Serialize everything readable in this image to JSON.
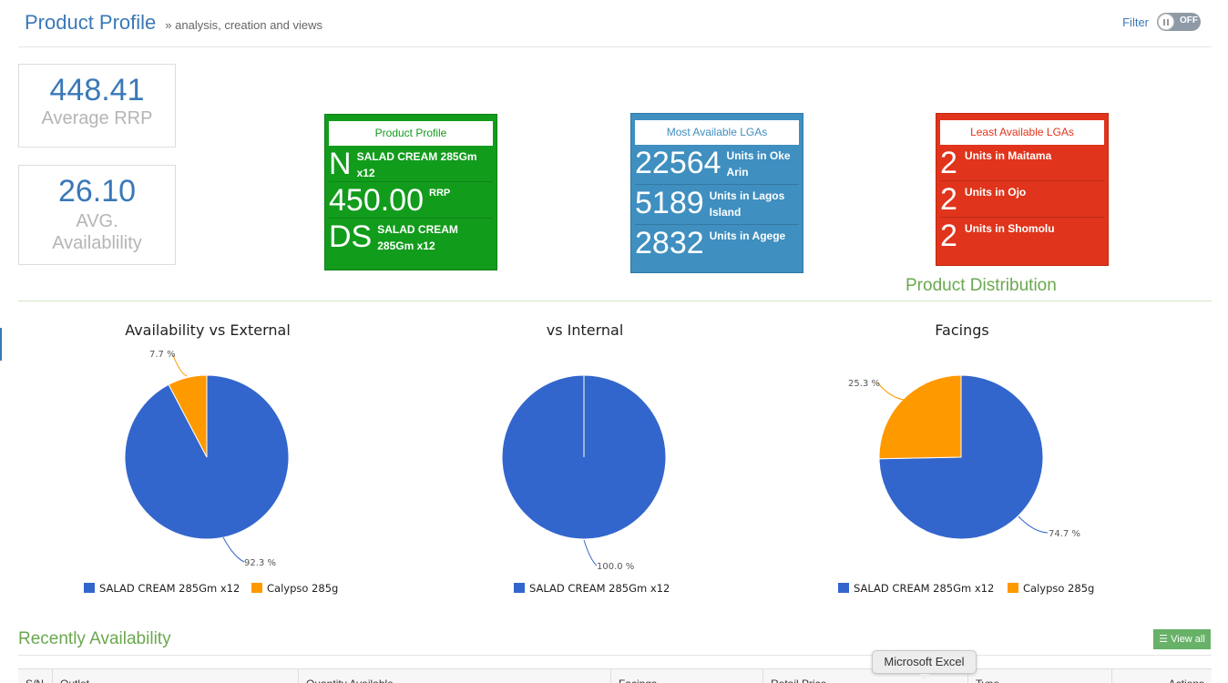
{
  "header": {
    "title": "Product Profile",
    "subtitle": "» analysis, creation and views",
    "filter_label": "Filter",
    "toggle_state": "OFF"
  },
  "stats": [
    {
      "value": "448.41",
      "label": "Average RRP"
    },
    {
      "value": "26.10",
      "label_line1": "AVG.",
      "label_line2": "Availablility"
    }
  ],
  "product_profile": {
    "title": "Product Profile",
    "rows": [
      {
        "big": "N",
        "small": "SALAD CREAM 285Gm x12"
      },
      {
        "big": "450.00",
        "small": "RRP"
      },
      {
        "big": "DS",
        "small": "SALAD CREAM 285Gm x12"
      }
    ]
  },
  "most_available": {
    "title": "Most Available LGAs",
    "rows": [
      {
        "big": "22564",
        "small": "Units in Oke Arin"
      },
      {
        "big": "5189",
        "small": "Units in Lagos Island"
      },
      {
        "big": "2832",
        "small": "Units in Agege"
      }
    ]
  },
  "least_available": {
    "title": "Least Available LGAs",
    "rows": [
      {
        "big": "2",
        "small": "Units in Maitama"
      },
      {
        "big": "2",
        "small": "Units in Ojo"
      },
      {
        "big": "2",
        "small": "Units in Shomolu"
      }
    ]
  },
  "distribution_title": "Product Distribution",
  "colors": {
    "blue": "#3366cc",
    "orange": "#ff9900"
  },
  "chart_data": [
    {
      "type": "pie",
      "title": "Availability vs External",
      "slices": [
        {
          "name": "SALAD CREAM 285Gm x12",
          "value": 92.3,
          "label": "92.3 %",
          "color": "#3366cc"
        },
        {
          "name": "Calypso 285g",
          "value": 7.7,
          "label": "7.7 %",
          "color": "#ff9900"
        }
      ],
      "legend": [
        "SALAD CREAM 285Gm x12",
        "Calypso 285g"
      ]
    },
    {
      "type": "pie",
      "title": "vs Internal",
      "slices": [
        {
          "name": "SALAD CREAM 285Gm x12",
          "value": 100.0,
          "label": "100.0 %",
          "color": "#3366cc"
        }
      ],
      "legend": [
        "SALAD CREAM 285Gm x12"
      ]
    },
    {
      "type": "pie",
      "title": "Facings",
      "slices": [
        {
          "name": "SALAD CREAM 285Gm x12",
          "value": 74.7,
          "label": "74.7 %",
          "color": "#3366cc"
        },
        {
          "name": "Calypso 285g",
          "value": 25.3,
          "label": "25.3 %",
          "color": "#ff9900"
        }
      ],
      "legend": [
        "SALAD CREAM 285Gm x12",
        "Calypso 285g"
      ]
    }
  ],
  "recent": {
    "title": "Recently Availability",
    "view_all": "View all",
    "columns": [
      "S/N",
      "Outlet",
      "Quantity Available",
      "Facings",
      "Retail Price",
      "Type",
      "Actions"
    ]
  },
  "tooltip": "Microsoft Excel"
}
